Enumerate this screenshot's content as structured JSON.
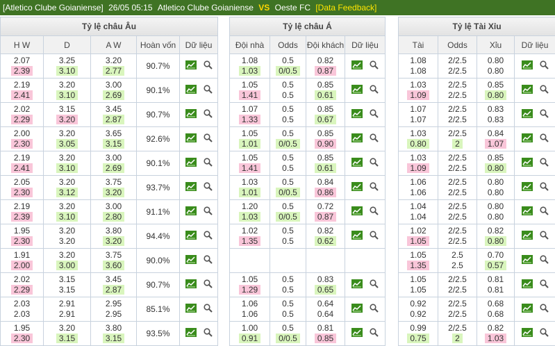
{
  "header": {
    "league": "[Atletico Clube Goianiense]",
    "time": "26/05 05:15",
    "home": "Atletico Clube Goianiense",
    "vs": "VS",
    "away": "Oeste FC",
    "feedback": "[Data Feedback]"
  },
  "tables": [
    {
      "title": "Tỷ lệ châu Âu",
      "columns": [
        "H W",
        "D",
        "A W",
        "Hoàn vốn",
        "Dữ liệu"
      ],
      "rows": [
        [
          [
            "2.07",
            "2.39",
            "up"
          ],
          [
            "3.25",
            "3.10",
            "down"
          ],
          [
            "3.20",
            "2.77",
            "down"
          ],
          "90.7%"
        ],
        [
          [
            "2.19",
            "2.41",
            "up"
          ],
          [
            "3.20",
            "3.10",
            "down"
          ],
          [
            "3.00",
            "2.69",
            "down"
          ],
          "90.1%"
        ],
        [
          [
            "2.02",
            "2.29",
            "up"
          ],
          [
            "3.15",
            "3.20",
            "up"
          ],
          [
            "3.45",
            "2.87",
            "down"
          ],
          "90.7%"
        ],
        [
          [
            "2.00",
            "2.30",
            "up"
          ],
          [
            "3.20",
            "3.05",
            "down"
          ],
          [
            "3.65",
            "3.15",
            "down"
          ],
          "92.6%"
        ],
        [
          [
            "2.19",
            "2.41",
            "up"
          ],
          [
            "3.20",
            "3.10",
            "down"
          ],
          [
            "3.00",
            "2.69",
            "down"
          ],
          "90.1%"
        ],
        [
          [
            "2.05",
            "2.30",
            "up"
          ],
          [
            "3.20",
            "3.12",
            "down"
          ],
          [
            "3.75",
            "3.20",
            "down"
          ],
          "93.7%"
        ],
        [
          [
            "2.19",
            "2.39",
            "up"
          ],
          [
            "3.20",
            "3.10",
            "down"
          ],
          [
            "3.00",
            "2.80",
            "down"
          ],
          "91.1%"
        ],
        [
          [
            "1.95",
            "2.30",
            "up"
          ],
          [
            "3.20",
            "3.20"
          ],
          [
            "3.80",
            "3.20",
            "down"
          ],
          "94.4%"
        ],
        [
          [
            "1.91",
            "2.00",
            "up"
          ],
          [
            "3.20",
            "3.00",
            "down"
          ],
          [
            "3.75",
            "3.60",
            "down"
          ],
          "90.0%"
        ],
        [
          [
            "2.02",
            "2.29",
            "up"
          ],
          [
            "3.15",
            "3.15"
          ],
          [
            "3.45",
            "2.87",
            "down"
          ],
          "90.7%"
        ],
        [
          [
            "2.03",
            "2.03"
          ],
          [
            "2.91",
            "2.91"
          ],
          [
            "2.95",
            "2.95"
          ],
          "85.1%"
        ],
        [
          [
            "1.95",
            "2.30",
            "up"
          ],
          [
            "3.20",
            "3.15",
            "down"
          ],
          [
            "3.80",
            "3.15",
            "down"
          ],
          "93.5%"
        ]
      ]
    },
    {
      "title": "Tỷ lệ châu Á",
      "columns": [
        "Đội nhà",
        "Odds",
        "Đội khách",
        "Dữ liệu"
      ],
      "rows": [
        [
          [
            "1.08",
            "1.03",
            "down"
          ],
          [
            "0.5",
            "0/0.5",
            "down"
          ],
          [
            "0.82",
            "0.87",
            "up"
          ]
        ],
        [
          [
            "1.05",
            "1.41",
            "up"
          ],
          [
            "0.5",
            "0.5"
          ],
          [
            "0.85",
            "0.61",
            "down"
          ]
        ],
        [
          [
            "1.07",
            "1.33",
            "up"
          ],
          [
            "0.5",
            "0.5"
          ],
          [
            "0.85",
            "0.67",
            "down"
          ]
        ],
        [
          [
            "1.05",
            "1.01",
            "down"
          ],
          [
            "0.5",
            "0/0.5",
            "down"
          ],
          [
            "0.85",
            "0.90",
            "up"
          ]
        ],
        [
          [
            "1.05",
            "1.41",
            "up"
          ],
          [
            "0.5",
            "0.5"
          ],
          [
            "0.85",
            "0.61",
            "down"
          ]
        ],
        [
          [
            "1.03",
            "1.01",
            "down"
          ],
          [
            "0.5",
            "0/0.5",
            "down"
          ],
          [
            "0.84",
            "0.86",
            "up"
          ]
        ],
        [
          [
            "1.20",
            "1.03",
            "down"
          ],
          [
            "0.5",
            "0/0.5",
            "down"
          ],
          [
            "0.72",
            "0.87",
            "up"
          ]
        ],
        [
          [
            "1.02",
            "1.35",
            "up"
          ],
          [
            "0.5",
            "0.5"
          ],
          [
            "0.82",
            "0.62",
            "down"
          ]
        ],
        [],
        [
          [
            "1.05",
            "1.29",
            "up"
          ],
          [
            "0.5",
            "0.5"
          ],
          [
            "0.83",
            "0.65",
            "down"
          ]
        ],
        [
          [
            "1.06",
            "1.06"
          ],
          [
            "0.5",
            "0.5"
          ],
          [
            "0.64",
            "0.64"
          ]
        ],
        [
          [
            "1.00",
            "0.91",
            "down"
          ],
          [
            "0.5",
            "0/0.5",
            "down"
          ],
          [
            "0.81",
            "0.85",
            "up"
          ]
        ]
      ]
    },
    {
      "title": "Tỷ lệ Tài Xỉu",
      "columns": [
        "Tài",
        "Odds",
        "Xỉu",
        "Dữ liệu"
      ],
      "rows": [
        [
          [
            "1.08",
            "1.08"
          ],
          [
            "2/2.5",
            "2/2.5"
          ],
          [
            "0.80",
            "0.80"
          ]
        ],
        [
          [
            "1.03",
            "1.09",
            "up"
          ],
          [
            "2/2.5",
            "2/2.5"
          ],
          [
            "0.85",
            "0.80",
            "down"
          ]
        ],
        [
          [
            "1.07",
            "1.07"
          ],
          [
            "2/2.5",
            "2/2.5"
          ],
          [
            "0.83",
            "0.83"
          ]
        ],
        [
          [
            "1.03",
            "0.80",
            "down"
          ],
          [
            "2/2.5",
            "2",
            "down"
          ],
          [
            "0.84",
            "1.07",
            "up"
          ]
        ],
        [
          [
            "1.03",
            "1.09",
            "up"
          ],
          [
            "2/2.5",
            "2/2.5"
          ],
          [
            "0.85",
            "0.80",
            "down"
          ]
        ],
        [
          [
            "1.06",
            "1.06"
          ],
          [
            "2/2.5",
            "2/2.5"
          ],
          [
            "0.80",
            "0.80"
          ]
        ],
        [
          [
            "1.04",
            "1.04"
          ],
          [
            "2/2.5",
            "2/2.5"
          ],
          [
            "0.80",
            "0.80"
          ]
        ],
        [
          [
            "1.02",
            "1.05",
            "up"
          ],
          [
            "2/2.5",
            "2/2.5"
          ],
          [
            "0.82",
            "0.80",
            "down"
          ]
        ],
        [
          [
            "1.05",
            "1.35",
            "up"
          ],
          [
            "2.5",
            "2.5"
          ],
          [
            "0.70",
            "0.57",
            "down"
          ]
        ],
        [
          [
            "1.05",
            "1.05"
          ],
          [
            "2/2.5",
            "2/2.5"
          ],
          [
            "0.81",
            "0.81"
          ]
        ],
        [
          [
            "0.92",
            "0.92"
          ],
          [
            "2/2.5",
            "2/2.5"
          ],
          [
            "0.68",
            "0.68"
          ]
        ],
        [
          [
            "0.99",
            "0.75",
            "down"
          ],
          [
            "2/2.5",
            "2",
            "down"
          ],
          [
            "0.82",
            "1.03",
            "up"
          ]
        ]
      ]
    }
  ]
}
